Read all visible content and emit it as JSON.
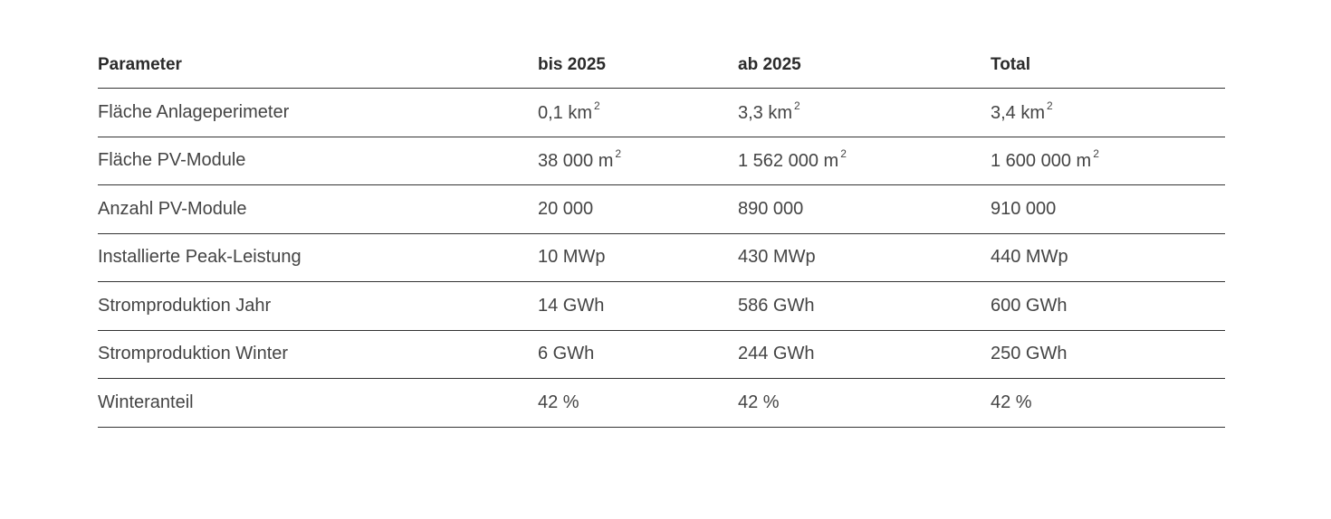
{
  "table": {
    "headers": [
      "Parameter",
      "bis 2025",
      "ab 2025",
      "Total"
    ],
    "rows": [
      {
        "label": "Fläche Anlageperimeter",
        "cells": [
          {
            "value": "0,1 km",
            "sup": "2"
          },
          {
            "value": "3,3 km",
            "sup": "2"
          },
          {
            "value": "3,4 km",
            "sup": "2"
          }
        ]
      },
      {
        "label": "Fläche PV-Module",
        "cells": [
          {
            "value": "38 000 m",
            "sup": "2"
          },
          {
            "value": "1 562 000 m",
            "sup": "2"
          },
          {
            "value": "1 600 000 m",
            "sup": "2"
          }
        ]
      },
      {
        "label": "Anzahl PV-Module",
        "cells": [
          {
            "value": "20 000",
            "sup": ""
          },
          {
            "value": "890 000",
            "sup": ""
          },
          {
            "value": "910 000",
            "sup": ""
          }
        ]
      },
      {
        "label": "Installierte Peak-Leistung",
        "cells": [
          {
            "value": "10 MWp",
            "sup": ""
          },
          {
            "value": "430 MWp",
            "sup": ""
          },
          {
            "value": "440 MWp",
            "sup": ""
          }
        ]
      },
      {
        "label": "Stromproduktion Jahr",
        "cells": [
          {
            "value": "14 GWh",
            "sup": ""
          },
          {
            "value": "586 GWh",
            "sup": ""
          },
          {
            "value": "600 GWh",
            "sup": ""
          }
        ]
      },
      {
        "label": "Stromproduktion Winter",
        "cells": [
          {
            "value": "6 GWh",
            "sup": ""
          },
          {
            "value": "244 GWh",
            "sup": ""
          },
          {
            "value": "250 GWh",
            "sup": ""
          }
        ]
      },
      {
        "label": "Winteranteil",
        "cells": [
          {
            "value": "42 %",
            "sup": ""
          },
          {
            "value": "42 %",
            "sup": ""
          },
          {
            "value": "42 %",
            "sup": ""
          }
        ]
      }
    ]
  }
}
